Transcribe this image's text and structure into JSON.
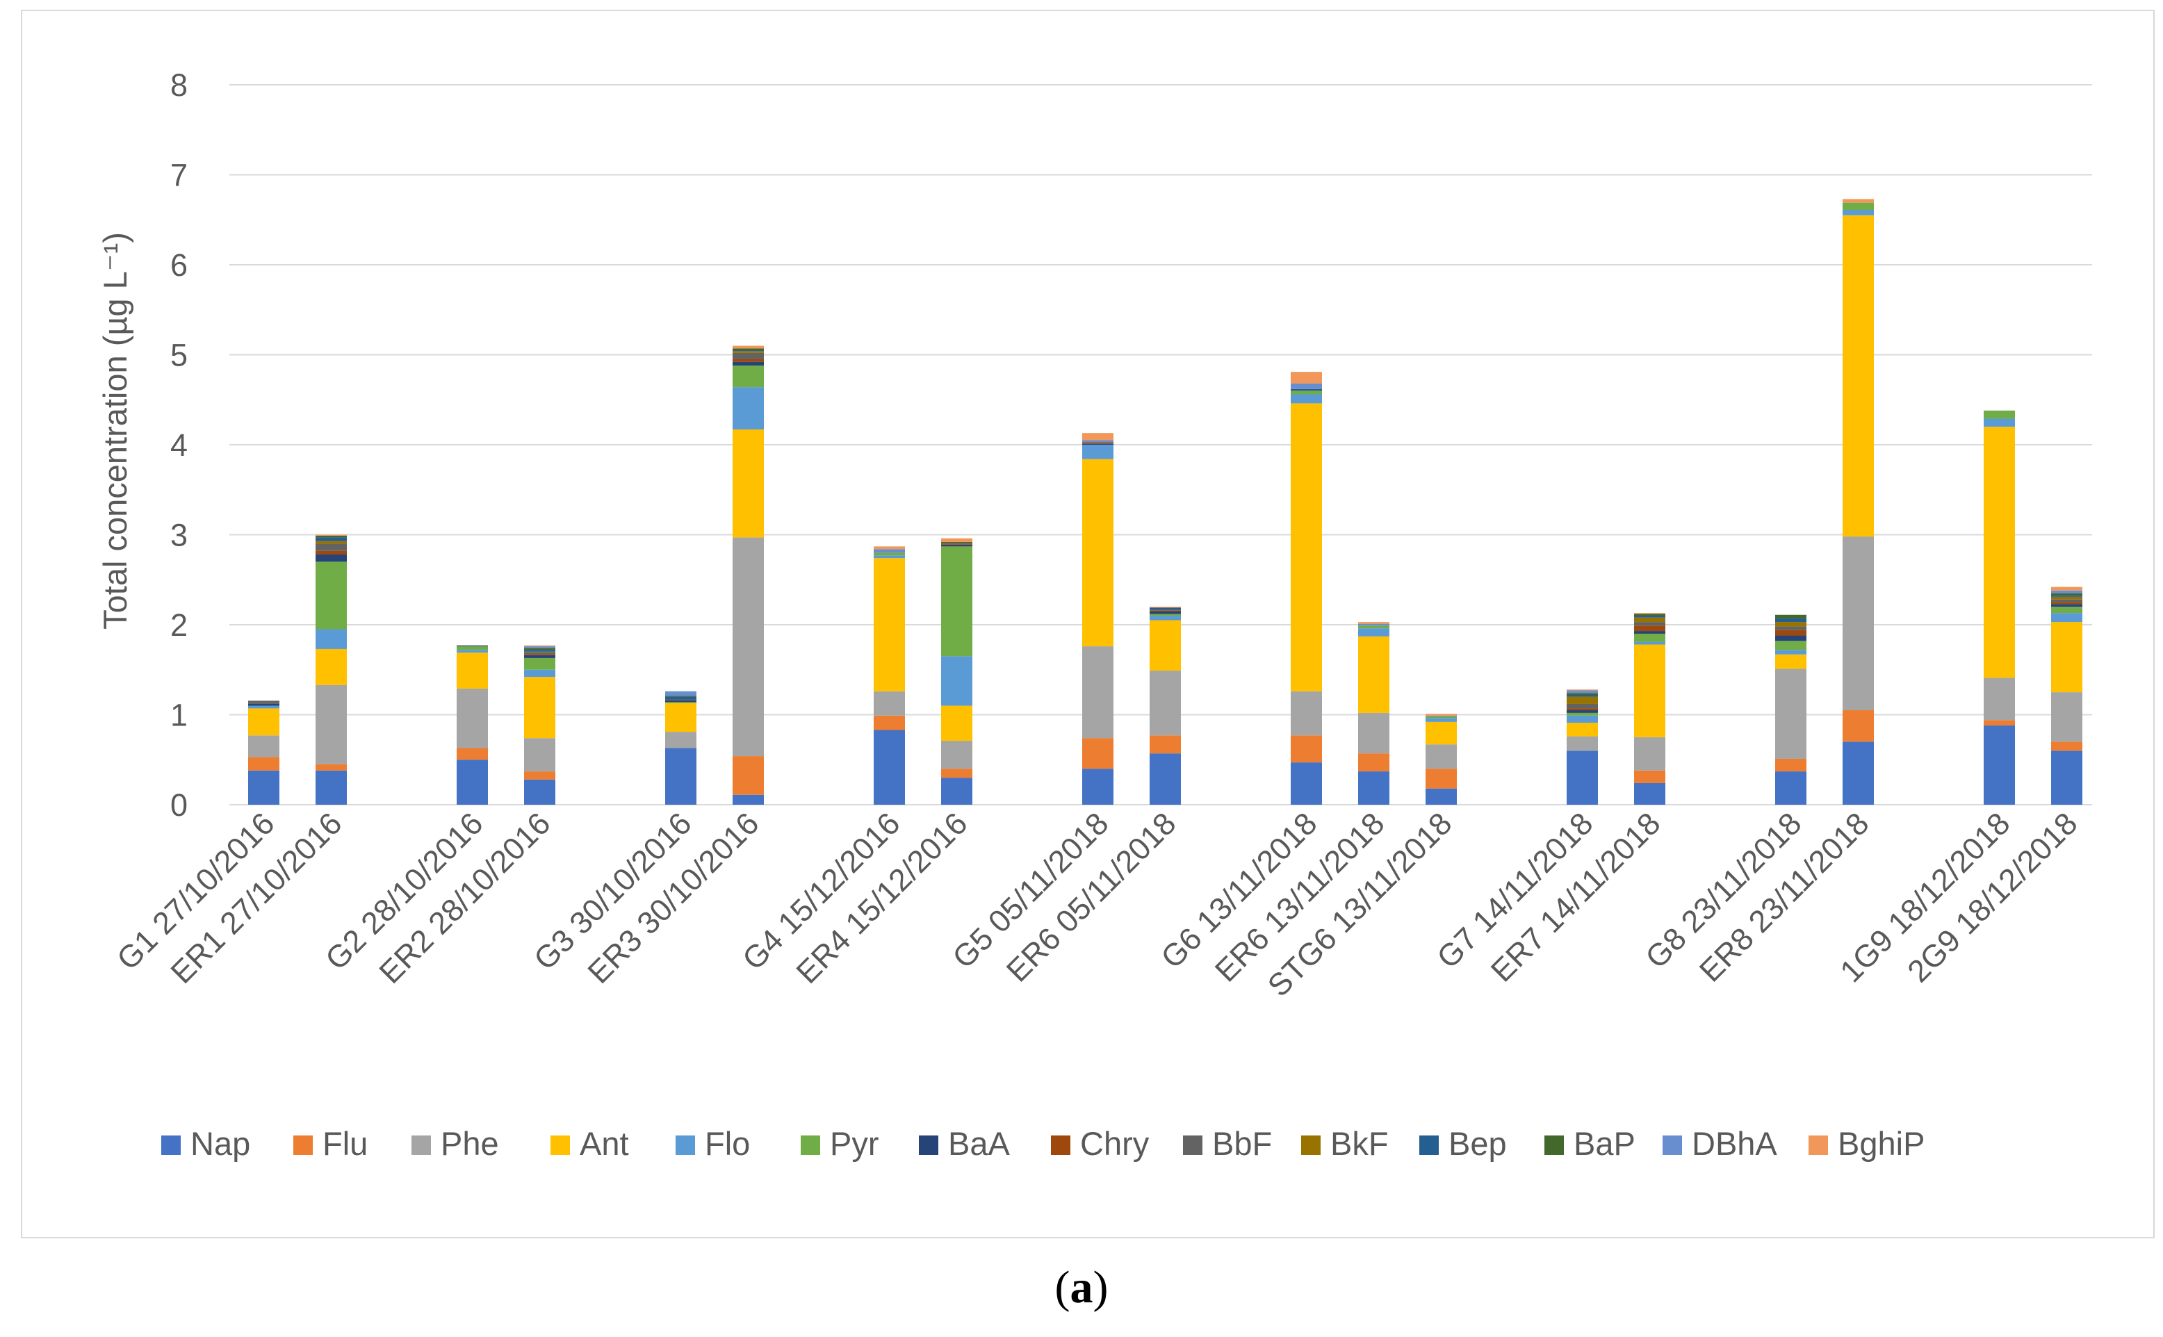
{
  "caption": {
    "open": "(",
    "letter": "a",
    "close": ")"
  },
  "chart_data": {
    "type": "bar",
    "stacked": true,
    "title": "",
    "xlabel": "",
    "ylabel": "Total concentration (µg L⁻¹)",
    "ylim": [
      0,
      8
    ],
    "yticks": [
      0,
      1,
      2,
      3,
      4,
      5,
      6,
      7,
      8
    ],
    "grid": true,
    "legend_position": "bottom",
    "components": [
      "Nap",
      "Flu",
      "Phe",
      "Ant",
      "Flo",
      "Pyr",
      "BaA",
      "Chry",
      "BbF",
      "BkF",
      "Bep",
      "BaP",
      "DBhA",
      "BghiP"
    ],
    "colors": [
      "#4472C4",
      "#ED7D31",
      "#A5A5A5",
      "#FFC000",
      "#5B9BD5",
      "#70AD47",
      "#264478",
      "#9E480E",
      "#636363",
      "#997300",
      "#255E91",
      "#43682B",
      "#698ED0",
      "#F1975A"
    ],
    "groups": [
      {
        "bars": [
          {
            "label": "G1 27/10/2016",
            "values": [
              0.38,
              0.15,
              0.24,
              0.3,
              0.03,
              0.0,
              0.02,
              0.0,
              0.02,
              0.0,
              0.01,
              0.0,
              0.0,
              0.01
            ]
          },
          {
            "label": "ER1 27/10/2016",
            "values": [
              0.38,
              0.07,
              0.88,
              0.4,
              0.22,
              0.75,
              0.08,
              0.04,
              0.08,
              0.03,
              0.04,
              0.02,
              0.0,
              0.01
            ]
          }
        ]
      },
      {
        "bars": [
          {
            "label": "G2 28/10/2016",
            "values": [
              0.5,
              0.13,
              0.66,
              0.4,
              0.03,
              0.04,
              0.01,
              0.0,
              0.0,
              0.0,
              0.0,
              0.0,
              0.0,
              0.0
            ]
          },
          {
            "label": "ER2 28/10/2016",
            "values": [
              0.28,
              0.09,
              0.37,
              0.68,
              0.08,
              0.13,
              0.03,
              0.01,
              0.02,
              0.01,
              0.02,
              0.02,
              0.02,
              0.01
            ]
          }
        ]
      },
      {
        "bars": [
          {
            "label": "G3 30/10/2016",
            "values": [
              0.63,
              0.0,
              0.18,
              0.32,
              0.0,
              0.01,
              0.02,
              0.0,
              0.01,
              0.0,
              0.03,
              0.01,
              0.05,
              0.0
            ]
          },
          {
            "label": "ER3 30/10/2016",
            "values": [
              0.11,
              0.43,
              2.43,
              1.2,
              0.47,
              0.24,
              0.04,
              0.03,
              0.07,
              0.02,
              0.01,
              0.02,
              0.0,
              0.03
            ]
          }
        ]
      },
      {
        "bars": [
          {
            "label": "G4 15/12/2016",
            "values": [
              0.83,
              0.16,
              0.27,
              1.48,
              0.03,
              0.03,
              0.0,
              0.0,
              0.0,
              0.0,
              0.0,
              0.0,
              0.04,
              0.03
            ]
          },
          {
            "label": "ER4 15/12/2016",
            "values": [
              0.3,
              0.1,
              0.31,
              0.39,
              0.55,
              1.22,
              0.02,
              0.01,
              0.01,
              0.0,
              0.0,
              0.01,
              0.0,
              0.04
            ]
          }
        ]
      },
      {
        "bars": [
          {
            "label": "G5 05/11/2018",
            "values": [
              0.4,
              0.34,
              1.02,
              2.08,
              0.16,
              0.0,
              0.01,
              0.01,
              0.01,
              0.0,
              0.0,
              0.0,
              0.02,
              0.08
            ]
          },
          {
            "label": "ER6 05/11/2018",
            "values": [
              0.57,
              0.2,
              0.72,
              0.56,
              0.05,
              0.02,
              0.03,
              0.01,
              0.01,
              0.0,
              0.02,
              0.0,
              0.0,
              0.01
            ]
          }
        ]
      },
      {
        "bars": [
          {
            "label": "G6 13/11/2018",
            "values": [
              0.47,
              0.3,
              0.49,
              3.2,
              0.1,
              0.04,
              0.0,
              0.0,
              0.0,
              0.0,
              0.02,
              0.0,
              0.06,
              0.13
            ]
          },
          {
            "label": "ER6 13/11/2018",
            "values": [
              0.37,
              0.2,
              0.45,
              0.85,
              0.09,
              0.03,
              0.0,
              0.0,
              0.0,
              0.0,
              0.0,
              0.0,
              0.02,
              0.02
            ]
          },
          {
            "label": "STG6 13/11/2018",
            "values": [
              0.18,
              0.22,
              0.27,
              0.25,
              0.04,
              0.02,
              0.0,
              0.0,
              0.0,
              0.0,
              0.0,
              0.0,
              0.01,
              0.02
            ]
          }
        ]
      },
      {
        "bars": [
          {
            "label": "G7 14/11/2018",
            "values": [
              0.6,
              0.0,
              0.16,
              0.15,
              0.08,
              0.03,
              0.03,
              0.02,
              0.05,
              0.08,
              0.02,
              0.02,
              0.03,
              0.01
            ]
          },
          {
            "label": "ER7 14/11/2018",
            "values": [
              0.24,
              0.14,
              0.37,
              1.03,
              0.03,
              0.09,
              0.03,
              0.06,
              0.04,
              0.05,
              0.02,
              0.02,
              0.0,
              0.01
            ]
          }
        ]
      },
      {
        "bars": [
          {
            "label": "G8 23/11/2018",
            "values": [
              0.37,
              0.14,
              1.0,
              0.16,
              0.05,
              0.1,
              0.06,
              0.06,
              0.04,
              0.05,
              0.04,
              0.04,
              0.0,
              0.0
            ]
          },
          {
            "label": "ER8 23/11/2018",
            "values": [
              0.7,
              0.35,
              1.93,
              3.57,
              0.06,
              0.08,
              0.0,
              0.0,
              0.0,
              0.0,
              0.0,
              0.0,
              0.0,
              0.04
            ]
          }
        ]
      },
      {
        "bars": [
          {
            "label": "1G9 18/12/2018",
            "values": [
              0.88,
              0.06,
              0.47,
              2.79,
              0.09,
              0.09,
              0.0,
              0.0,
              0.0,
              0.0,
              0.0,
              0.0,
              0.0,
              0.0
            ]
          },
          {
            "label": "2G9 18/12/2018",
            "values": [
              0.6,
              0.1,
              0.55,
              0.78,
              0.1,
              0.07,
              0.03,
              0.02,
              0.03,
              0.03,
              0.02,
              0.02,
              0.03,
              0.04
            ]
          }
        ]
      }
    ]
  }
}
